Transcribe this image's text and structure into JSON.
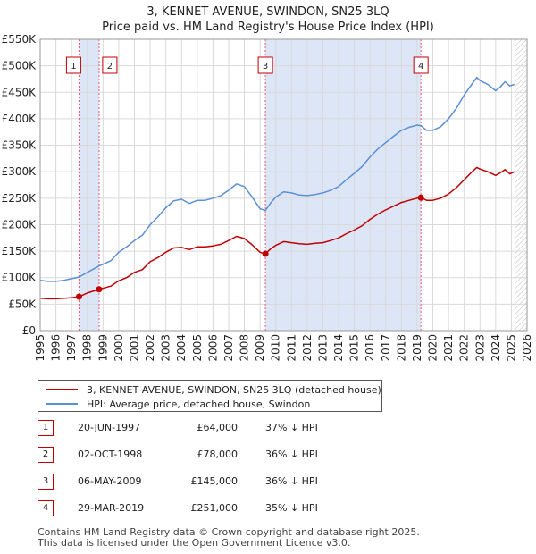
{
  "title_line1": "3, KENNET AVENUE, SWINDON, SN25 3LQ",
  "title_line2": "Price paid vs. HM Land Registry's House Price Index (HPI)",
  "colors": {
    "property": "#c00000",
    "hpi": "#5b8fd4",
    "shade": "#dde6f7",
    "grid": "#d9d9d9",
    "vline": "#e05a6a"
  },
  "chart_data": {
    "type": "line",
    "xlim": [
      1995,
      2026
    ],
    "ylim": [
      0,
      550000
    ],
    "y_ticks": [
      {
        "value": 0,
        "label": "£0"
      },
      {
        "value": 50000,
        "label": "£50K"
      },
      {
        "value": 100000,
        "label": "£100K"
      },
      {
        "value": 150000,
        "label": "£150K"
      },
      {
        "value": 200000,
        "label": "£200K"
      },
      {
        "value": 250000,
        "label": "£250K"
      },
      {
        "value": 300000,
        "label": "£300K"
      },
      {
        "value": 350000,
        "label": "£350K"
      },
      {
        "value": 400000,
        "label": "£400K"
      },
      {
        "value": 450000,
        "label": "£450K"
      },
      {
        "value": 500000,
        "label": "£500K"
      },
      {
        "value": 550000,
        "label": "£550K"
      }
    ],
    "x_ticks": [
      "1995",
      "1996",
      "1997",
      "1998",
      "1999",
      "2000",
      "2001",
      "2002",
      "2003",
      "2004",
      "2005",
      "2006",
      "2007",
      "2008",
      "2009",
      "2010",
      "2011",
      "2012",
      "2013",
      "2014",
      "2015",
      "2016",
      "2017",
      "2018",
      "2019",
      "2020",
      "2021",
      "2022",
      "2023",
      "2024",
      "2025",
      "2026"
    ],
    "shaded_ranges": [
      [
        1997.47,
        1998.75
      ],
      [
        2009.34,
        2019.24
      ]
    ],
    "hatch_from": 2025.2,
    "series": [
      {
        "name": "3, KENNET AVENUE, SWINDON, SN25 3LQ (detached house)",
        "points": [
          [
            1995.0,
            61000
          ],
          [
            1995.5,
            60000
          ],
          [
            1996.0,
            60000
          ],
          [
            1996.5,
            61000
          ],
          [
            1997.0,
            62000
          ],
          [
            1997.47,
            64000
          ],
          [
            1998.0,
            71000
          ],
          [
            1998.75,
            78000
          ],
          [
            1999.5,
            84000
          ],
          [
            2000.0,
            94000
          ],
          [
            2000.5,
            100000
          ],
          [
            2001.0,
            110000
          ],
          [
            2001.5,
            115000
          ],
          [
            2002.0,
            130000
          ],
          [
            2002.5,
            138000
          ],
          [
            2003.0,
            148000
          ],
          [
            2003.5,
            156000
          ],
          [
            2004.0,
            157000
          ],
          [
            2004.5,
            153000
          ],
          [
            2005.0,
            158000
          ],
          [
            2005.5,
            158000
          ],
          [
            2006.0,
            160000
          ],
          [
            2006.5,
            163000
          ],
          [
            2007.0,
            170000
          ],
          [
            2007.5,
            178000
          ],
          [
            2008.0,
            174000
          ],
          [
            2008.5,
            162000
          ],
          [
            2009.0,
            148000
          ],
          [
            2009.34,
            145000
          ],
          [
            2009.7,
            155000
          ],
          [
            2010.0,
            161000
          ],
          [
            2010.5,
            168000
          ],
          [
            2011.0,
            166000
          ],
          [
            2011.5,
            164000
          ],
          [
            2012.0,
            163000
          ],
          [
            2012.5,
            165000
          ],
          [
            2013.0,
            166000
          ],
          [
            2013.5,
            170000
          ],
          [
            2014.0,
            175000
          ],
          [
            2014.5,
            183000
          ],
          [
            2015.0,
            190000
          ],
          [
            2015.5,
            198000
          ],
          [
            2016.0,
            210000
          ],
          [
            2016.5,
            220000
          ],
          [
            2017.0,
            228000
          ],
          [
            2017.5,
            235000
          ],
          [
            2018.0,
            242000
          ],
          [
            2018.5,
            246000
          ],
          [
            2019.0,
            250000
          ],
          [
            2019.24,
            251000
          ],
          [
            2019.6,
            246000
          ],
          [
            2020.0,
            246000
          ],
          [
            2020.5,
            250000
          ],
          [
            2021.0,
            258000
          ],
          [
            2021.5,
            270000
          ],
          [
            2022.0,
            285000
          ],
          [
            2022.5,
            300000
          ],
          [
            2022.8,
            308000
          ],
          [
            2023.0,
            305000
          ],
          [
            2023.5,
            300000
          ],
          [
            2024.0,
            293000
          ],
          [
            2024.3,
            298000
          ],
          [
            2024.6,
            304000
          ],
          [
            2024.9,
            296000
          ],
          [
            2025.2,
            300000
          ]
        ]
      },
      {
        "name": "HPI: Average price, detached house, Swindon",
        "points": [
          [
            1995.0,
            95000
          ],
          [
            1995.5,
            93000
          ],
          [
            1996.0,
            93000
          ],
          [
            1996.5,
            95000
          ],
          [
            1997.0,
            98000
          ],
          [
            1997.47,
            101000
          ],
          [
            1998.0,
            110000
          ],
          [
            1998.75,
            122000
          ],
          [
            1999.5,
            132000
          ],
          [
            2000.0,
            148000
          ],
          [
            2000.5,
            158000
          ],
          [
            2001.0,
            170000
          ],
          [
            2001.5,
            180000
          ],
          [
            2002.0,
            200000
          ],
          [
            2002.5,
            215000
          ],
          [
            2003.0,
            232000
          ],
          [
            2003.5,
            245000
          ],
          [
            2004.0,
            248000
          ],
          [
            2004.5,
            240000
          ],
          [
            2005.0,
            246000
          ],
          [
            2005.5,
            246000
          ],
          [
            2006.0,
            250000
          ],
          [
            2006.5,
            255000
          ],
          [
            2007.0,
            265000
          ],
          [
            2007.5,
            277000
          ],
          [
            2008.0,
            272000
          ],
          [
            2008.5,
            252000
          ],
          [
            2009.0,
            230000
          ],
          [
            2009.34,
            227000
          ],
          [
            2009.7,
            242000
          ],
          [
            2010.0,
            252000
          ],
          [
            2010.5,
            262000
          ],
          [
            2011.0,
            260000
          ],
          [
            2011.5,
            256000
          ],
          [
            2012.0,
            255000
          ],
          [
            2012.5,
            257000
          ],
          [
            2013.0,
            260000
          ],
          [
            2013.5,
            265000
          ],
          [
            2014.0,
            272000
          ],
          [
            2014.5,
            285000
          ],
          [
            2015.0,
            297000
          ],
          [
            2015.5,
            310000
          ],
          [
            2016.0,
            328000
          ],
          [
            2016.5,
            343000
          ],
          [
            2017.0,
            355000
          ],
          [
            2017.5,
            367000
          ],
          [
            2018.0,
            378000
          ],
          [
            2018.5,
            384000
          ],
          [
            2019.0,
            388000
          ],
          [
            2019.24,
            387000
          ],
          [
            2019.6,
            378000
          ],
          [
            2020.0,
            378000
          ],
          [
            2020.5,
            385000
          ],
          [
            2021.0,
            400000
          ],
          [
            2021.5,
            420000
          ],
          [
            2022.0,
            445000
          ],
          [
            2022.5,
            466000
          ],
          [
            2022.8,
            478000
          ],
          [
            2023.0,
            472000
          ],
          [
            2023.5,
            465000
          ],
          [
            2024.0,
            453000
          ],
          [
            2024.3,
            460000
          ],
          [
            2024.6,
            470000
          ],
          [
            2024.9,
            462000
          ],
          [
            2025.2,
            465000
          ]
        ]
      }
    ],
    "sales": [
      {
        "n": "1",
        "x": 1997.47,
        "price": 64000
      },
      {
        "n": "2",
        "x": 1998.75,
        "price": 78000
      },
      {
        "n": "3",
        "x": 2009.34,
        "price": 145000
      },
      {
        "n": "4",
        "x": 2019.24,
        "price": 251000
      }
    ]
  },
  "legend": {
    "property_label": "3, KENNET AVENUE, SWINDON, SN25 3LQ (detached house)",
    "hpi_label": "HPI: Average price, detached house, Swindon"
  },
  "table": [
    {
      "n": "1",
      "date": "20-JUN-1997",
      "price": "£64,000",
      "hpi": "37% ↓ HPI"
    },
    {
      "n": "2",
      "date": "02-OCT-1998",
      "price": "£78,000",
      "hpi": "36% ↓ HPI"
    },
    {
      "n": "3",
      "date": "06-MAY-2009",
      "price": "£145,000",
      "hpi": "36% ↓ HPI"
    },
    {
      "n": "4",
      "date": "29-MAR-2019",
      "price": "£251,000",
      "hpi": "35% ↓ HPI"
    }
  ],
  "footer_line1": "Contains HM Land Registry data © Crown copyright and database right 2025.",
  "footer_line2": "This data is licensed under the Open Government Licence v3.0."
}
